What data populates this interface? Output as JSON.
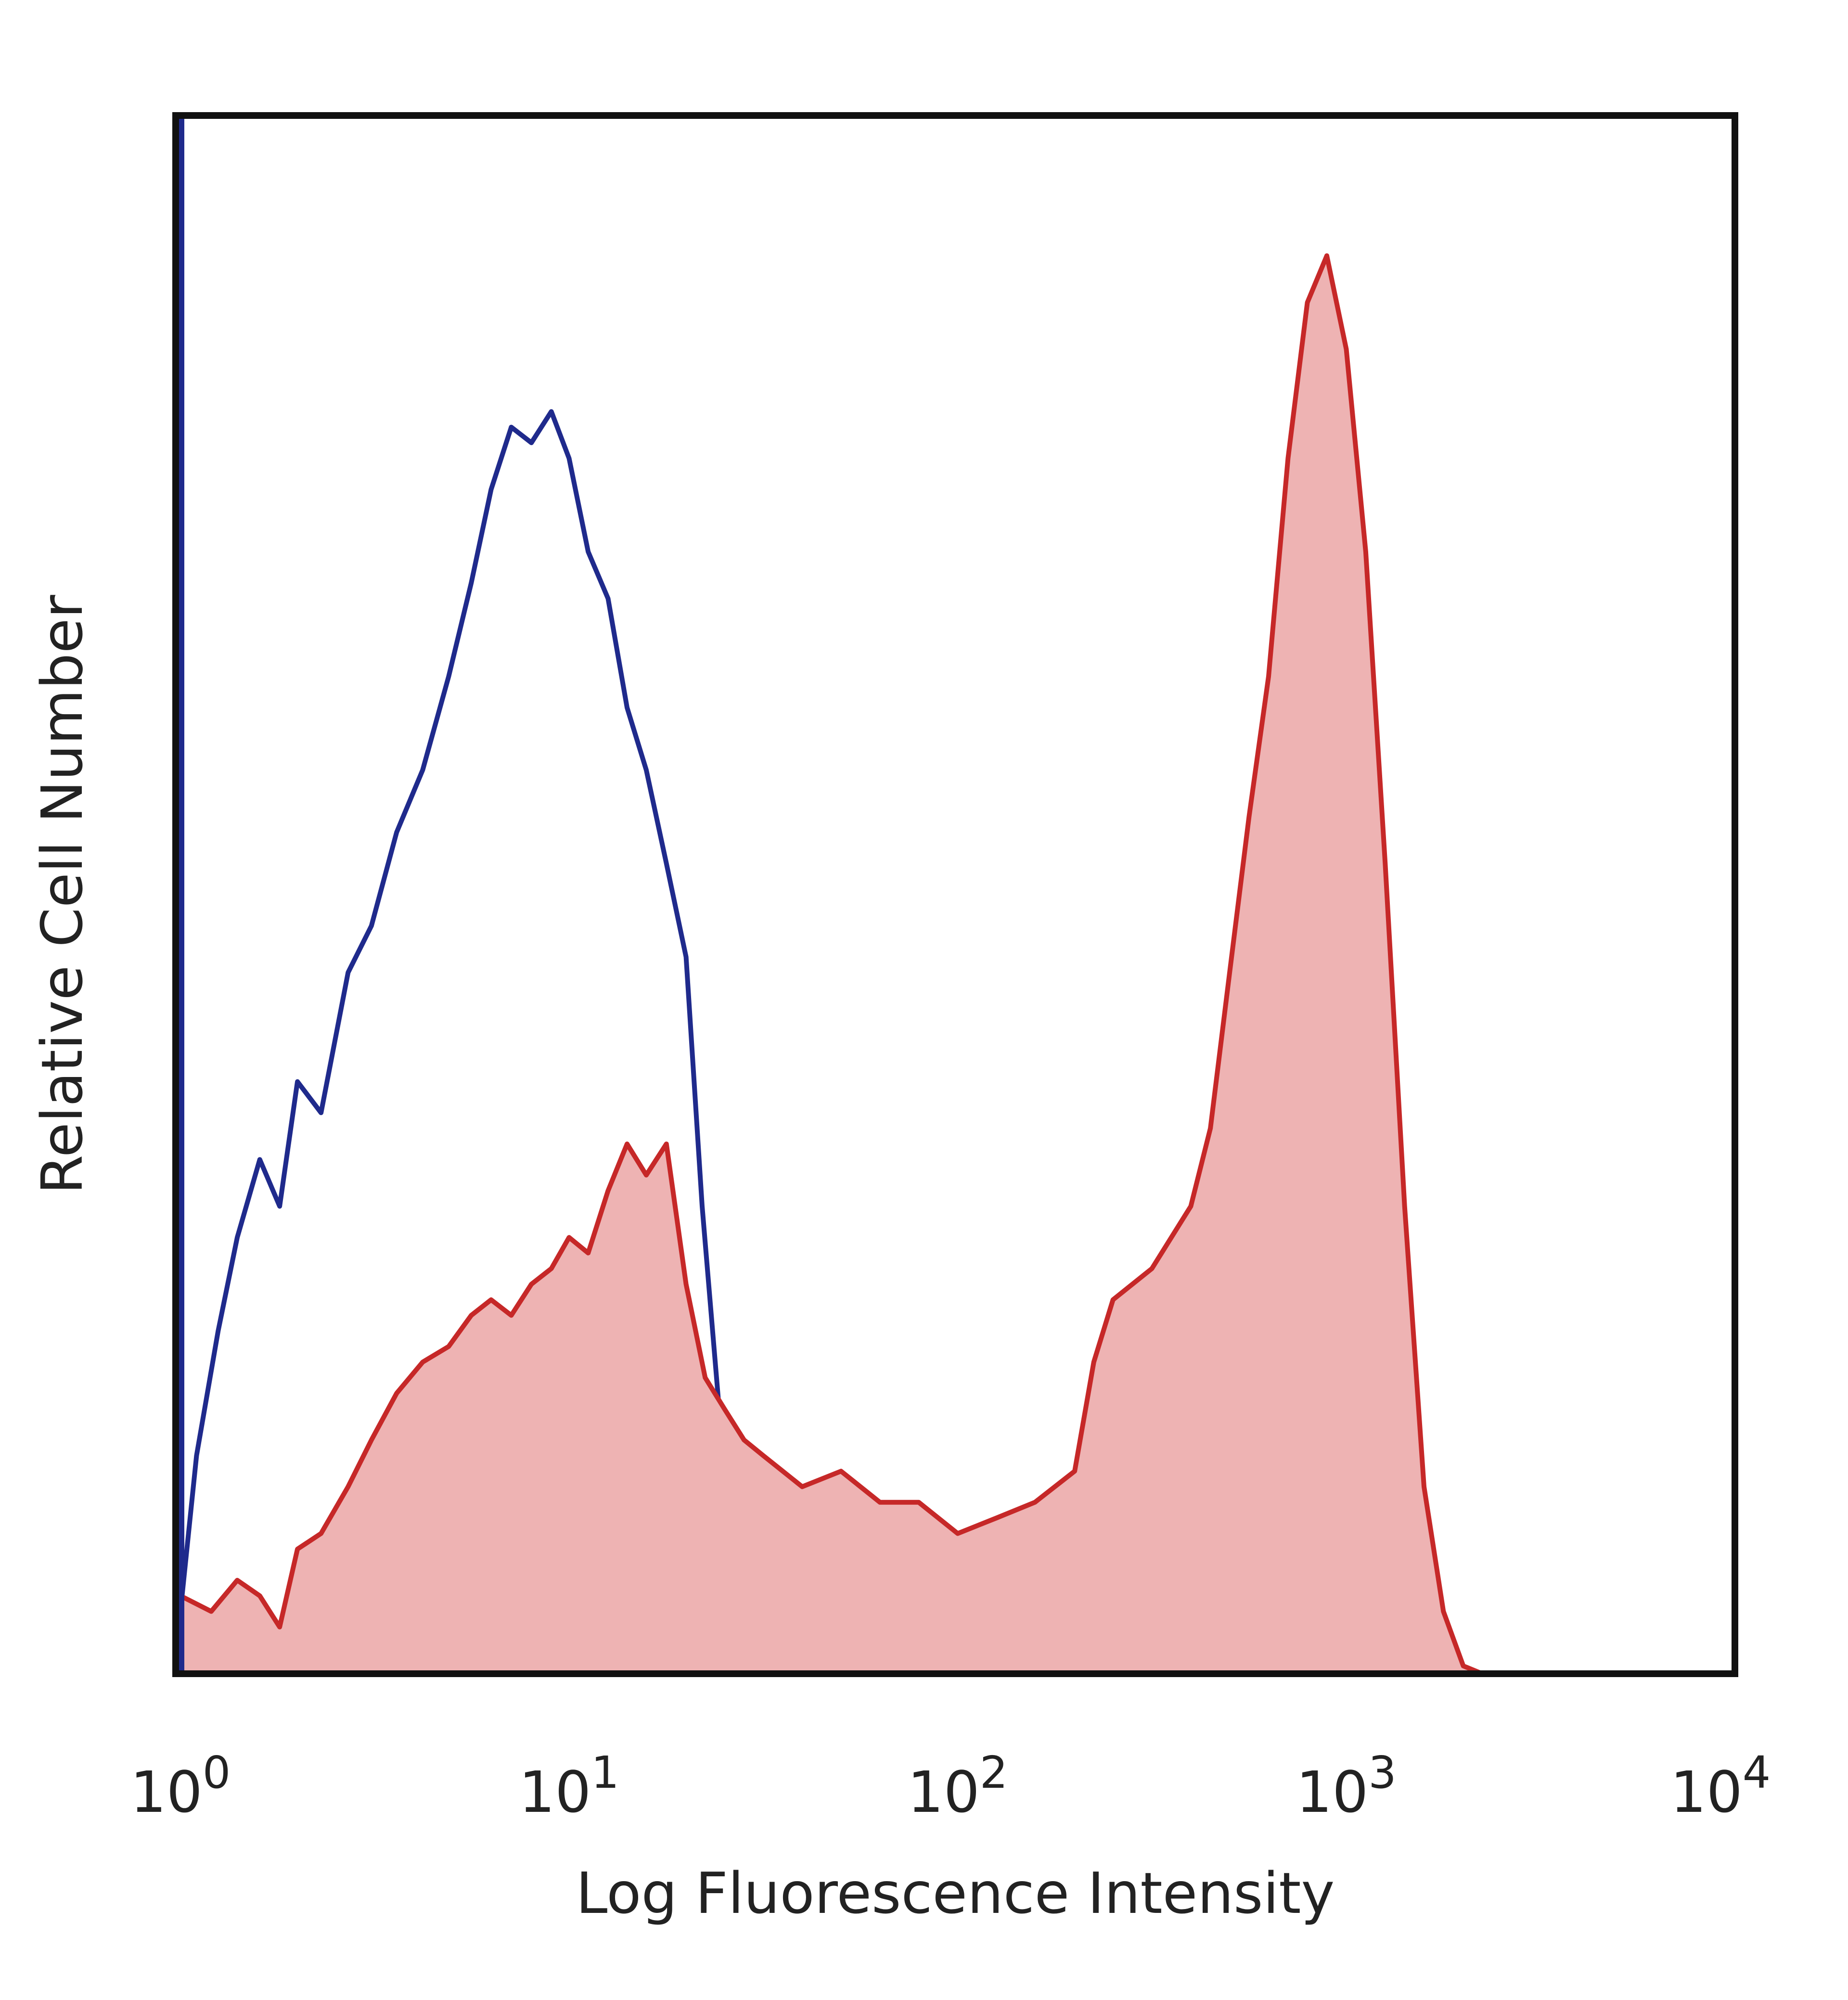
{
  "chart_data": {
    "type": "area",
    "title": "",
    "xlabel": "Log Fluorescence Intensity",
    "ylabel": "Relative Cell Number",
    "x_scale": "log",
    "xlim": [
      1,
      10000
    ],
    "ylim": [
      0,
      100
    ],
    "grid": false,
    "legend": "none",
    "x_ticks": [
      {
        "value": 1,
        "base": "10",
        "exp": "0"
      },
      {
        "value": 10,
        "base": "10",
        "exp": "1"
      },
      {
        "value": 100,
        "base": "10",
        "exp": "2"
      },
      {
        "value": 1000,
        "base": "10",
        "exp": "3"
      },
      {
        "value": 10000,
        "base": "10",
        "exp": "4"
      }
    ],
    "series": [
      {
        "color": "#1f2a8c",
        "fill": "none",
        "points": [
          [
            1.0,
            4
          ],
          [
            1.1,
            14
          ],
          [
            1.25,
            22
          ],
          [
            1.4,
            28
          ],
          [
            1.6,
            33
          ],
          [
            1.8,
            30
          ],
          [
            2.0,
            38
          ],
          [
            2.3,
            36
          ],
          [
            2.7,
            45
          ],
          [
            3.1,
            48
          ],
          [
            3.6,
            54
          ],
          [
            4.2,
            58
          ],
          [
            4.9,
            64
          ],
          [
            5.6,
            70
          ],
          [
            6.3,
            76
          ],
          [
            7.1,
            80
          ],
          [
            8.0,
            79
          ],
          [
            9.0,
            81
          ],
          [
            10.0,
            78
          ],
          [
            11.2,
            72
          ],
          [
            12.6,
            69
          ],
          [
            14.1,
            62
          ],
          [
            15.8,
            58
          ],
          [
            17.8,
            52
          ],
          [
            20.0,
            46
          ],
          [
            22.0,
            30
          ],
          [
            25.1,
            13
          ],
          [
            28.2,
            6
          ],
          [
            31.6,
            2
          ],
          [
            35.5,
            0.5
          ],
          [
            40,
            0
          ],
          [
            10000,
            0
          ]
        ]
      },
      {
        "color": "#c62828",
        "fill": "#eeb3b3",
        "points": [
          [
            1.0,
            5
          ],
          [
            1.2,
            4
          ],
          [
            1.4,
            6
          ],
          [
            1.6,
            5
          ],
          [
            1.8,
            3
          ],
          [
            2.0,
            8
          ],
          [
            2.3,
            9
          ],
          [
            2.7,
            12
          ],
          [
            3.1,
            15
          ],
          [
            3.6,
            18
          ],
          [
            4.2,
            20
          ],
          [
            4.9,
            21
          ],
          [
            5.6,
            23
          ],
          [
            6.3,
            24
          ],
          [
            7.1,
            23
          ],
          [
            8.0,
            25
          ],
          [
            9.0,
            26
          ],
          [
            10.0,
            28
          ],
          [
            11.2,
            27
          ],
          [
            12.6,
            31
          ],
          [
            14.1,
            34
          ],
          [
            15.8,
            32
          ],
          [
            17.8,
            34
          ],
          [
            20.0,
            25
          ],
          [
            22.4,
            19
          ],
          [
            25.1,
            17
          ],
          [
            28.2,
            15
          ],
          [
            31.6,
            14
          ],
          [
            39.8,
            12
          ],
          [
            50.1,
            13
          ],
          [
            63.1,
            11
          ],
          [
            79.4,
            11
          ],
          [
            100,
            9
          ],
          [
            126,
            10
          ],
          [
            158,
            11
          ],
          [
            200,
            13
          ],
          [
            224,
            20
          ],
          [
            251,
            24
          ],
          [
            316,
            26
          ],
          [
            398,
            30
          ],
          [
            447,
            35
          ],
          [
            501,
            45
          ],
          [
            562,
            55
          ],
          [
            631,
            64
          ],
          [
            708,
            78
          ],
          [
            794,
            88
          ],
          [
            891,
            91
          ],
          [
            1000,
            85
          ],
          [
            1122,
            72
          ],
          [
            1259,
            52
          ],
          [
            1413,
            30
          ],
          [
            1585,
            12
          ],
          [
            1778,
            4
          ],
          [
            2000,
            0.5
          ],
          [
            2239,
            0
          ],
          [
            10000,
            0
          ]
        ]
      }
    ]
  }
}
